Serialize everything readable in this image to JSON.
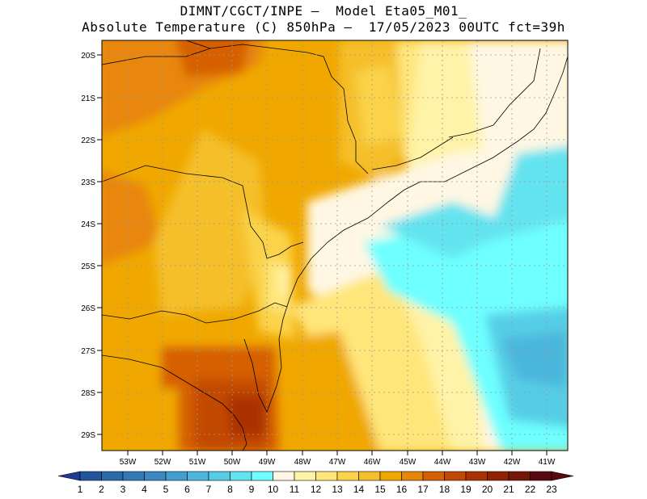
{
  "header": {
    "line1": "DIMNT/CGCT/INPE –  Model Eta05_M01_",
    "line2": "Absolute Temperature (C) 850hPa –  17/05/2023 00UTC fct=39h"
  },
  "map": {
    "lat_labels": [
      "20S",
      "21S",
      "22S",
      "23S",
      "24S",
      "25S",
      "26S",
      "27S",
      "28S",
      "29S"
    ],
    "lon_labels": [
      "53W",
      "52W",
      "51W",
      "50W",
      "49W",
      "48W",
      "47W",
      "46W",
      "45W",
      "44W",
      "43W",
      "42W",
      "41W"
    ]
  },
  "colorbar": {
    "labels": [
      "1",
      "2",
      "3",
      "4",
      "5",
      "6",
      "7",
      "8",
      "9",
      "10",
      "11",
      "12",
      "13",
      "14",
      "15",
      "16",
      "17",
      "18",
      "19",
      "20",
      "21",
      "22",
      "23"
    ],
    "colors": [
      "#1f3a93",
      "#22559e",
      "#2a6aab",
      "#3379b8",
      "#3a89c2",
      "#41a0cf",
      "#4cb6dc",
      "#56cde6",
      "#63e3ef",
      "#6effff",
      "#fff7e3",
      "#fff3a8",
      "#ffe67a",
      "#fbd34a",
      "#f5bf2c",
      "#f0a800",
      "#e8860a",
      "#d65f06",
      "#c24805",
      "#aa3303",
      "#8f2303",
      "#741707",
      "#580a10"
    ]
  }
}
